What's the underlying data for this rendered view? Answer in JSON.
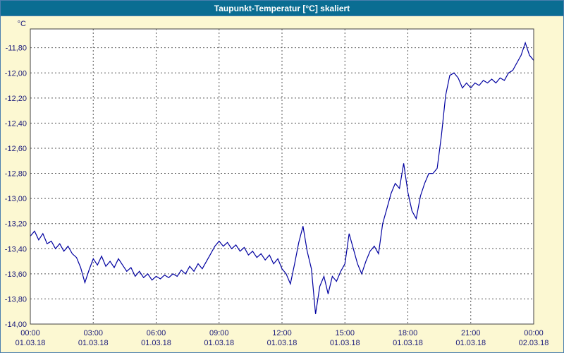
{
  "window": {
    "title": "Taupunkt-Temperatur [°C] skaliert"
  },
  "colors": {
    "titlebar_bg": "#0a6d92",
    "titlebar_text": "#ffffff",
    "chart_bg": "#fcf8d2",
    "plot_bg": "#ffffff",
    "grid": "#555555",
    "line": "#0000a0",
    "axis_text": "#1a1a7a",
    "frame": "#404040",
    "outer_border": "#4a7fae"
  },
  "chart_data": {
    "type": "line",
    "title": "Taupunkt-Temperatur [°C] skaliert",
    "ylabel": "°C",
    "xlabel": "",
    "grid": true,
    "legend": false,
    "ylim": [
      -14.0,
      -11.65
    ],
    "xlim_hours": [
      0,
      24
    ],
    "y_ticks": [
      {
        "value": -11.8,
        "label": "-11,80"
      },
      {
        "value": -12.0,
        "label": "-12,00"
      },
      {
        "value": -12.2,
        "label": "-12,20"
      },
      {
        "value": -12.4,
        "label": "-12,40"
      },
      {
        "value": -12.6,
        "label": "-12,60"
      },
      {
        "value": -12.8,
        "label": "-12,80"
      },
      {
        "value": -13.0,
        "label": "-13,00"
      },
      {
        "value": -13.2,
        "label": "-13,20"
      },
      {
        "value": -13.4,
        "label": "-13,40"
      },
      {
        "value": -13.6,
        "label": "-13,60"
      },
      {
        "value": -13.8,
        "label": "-13,80"
      },
      {
        "value": -14.0,
        "label": "-14,00"
      }
    ],
    "x_ticks": [
      {
        "hour": 0,
        "time": "00:00",
        "date": "01.03.18"
      },
      {
        "hour": 3,
        "time": "03:00",
        "date": "01.03.18"
      },
      {
        "hour": 6,
        "time": "06:00",
        "date": "01.03.18"
      },
      {
        "hour": 9,
        "time": "09:00",
        "date": "01.03.18"
      },
      {
        "hour": 12,
        "time": "12:00",
        "date": "01.03.18"
      },
      {
        "hour": 15,
        "time": "15:00",
        "date": "01.03.18"
      },
      {
        "hour": 18,
        "time": "18:00",
        "date": "01.03.18"
      },
      {
        "hour": 21,
        "time": "21:00",
        "date": "01.03.18"
      },
      {
        "hour": 24,
        "time": "00:00",
        "date": "02.03.18"
      }
    ],
    "series": [
      {
        "name": "Taupunkt-Temperatur",
        "x": [
          0,
          0.2,
          0.4,
          0.6,
          0.8,
          1.0,
          1.2,
          1.4,
          1.6,
          1.8,
          2.0,
          2.2,
          2.4,
          2.6,
          2.8,
          3.0,
          3.2,
          3.4,
          3.6,
          3.8,
          4.0,
          4.2,
          4.4,
          4.6,
          4.8,
          5.0,
          5.2,
          5.4,
          5.6,
          5.8,
          6.0,
          6.2,
          6.4,
          6.6,
          6.8,
          7.0,
          7.2,
          7.4,
          7.6,
          7.8,
          8.0,
          8.2,
          8.4,
          8.6,
          8.8,
          9.0,
          9.2,
          9.4,
          9.6,
          9.8,
          10.0,
          10.2,
          10.4,
          10.6,
          10.8,
          11.0,
          11.2,
          11.4,
          11.6,
          11.8,
          12.0,
          12.2,
          12.4,
          12.6,
          12.8,
          13.0,
          13.2,
          13.4,
          13.6,
          13.8,
          14.0,
          14.2,
          14.4,
          14.6,
          14.8,
          15.0,
          15.2,
          15.4,
          15.6,
          15.8,
          16.0,
          16.2,
          16.4,
          16.6,
          16.8,
          17.0,
          17.2,
          17.4,
          17.6,
          17.8,
          18.0,
          18.2,
          18.4,
          18.6,
          18.8,
          19.0,
          19.2,
          19.4,
          19.6,
          19.8,
          20.0,
          20.2,
          20.4,
          20.6,
          20.8,
          21.0,
          21.2,
          21.4,
          21.6,
          21.8,
          22.0,
          22.2,
          22.4,
          22.6,
          22.8,
          23.0,
          23.2,
          23.4,
          23.6,
          23.8,
          24.0
        ],
        "y": [
          -13.3,
          -13.26,
          -13.33,
          -13.28,
          -13.36,
          -13.34,
          -13.4,
          -13.36,
          -13.42,
          -13.38,
          -13.44,
          -13.47,
          -13.55,
          -13.67,
          -13.57,
          -13.48,
          -13.53,
          -13.46,
          -13.54,
          -13.5,
          -13.55,
          -13.48,
          -13.53,
          -13.58,
          -13.55,
          -13.62,
          -13.58,
          -13.63,
          -13.6,
          -13.65,
          -13.62,
          -13.64,
          -13.61,
          -13.63,
          -13.6,
          -13.62,
          -13.57,
          -13.6,
          -13.54,
          -13.58,
          -13.52,
          -13.56,
          -13.5,
          -13.44,
          -13.38,
          -13.34,
          -13.38,
          -13.35,
          -13.4,
          -13.37,
          -13.42,
          -13.39,
          -13.45,
          -13.42,
          -13.47,
          -13.44,
          -13.49,
          -13.45,
          -13.52,
          -13.48,
          -13.56,
          -13.6,
          -13.68,
          -13.52,
          -13.35,
          -13.22,
          -13.42,
          -13.56,
          -13.92,
          -13.7,
          -13.62,
          -13.76,
          -13.62,
          -13.66,
          -13.58,
          -13.52,
          -13.28,
          -13.4,
          -13.52,
          -13.6,
          -13.5,
          -13.42,
          -13.38,
          -13.44,
          -13.2,
          -13.08,
          -12.96,
          -12.88,
          -12.92,
          -12.72,
          -12.95,
          -13.1,
          -13.16,
          -12.98,
          -12.88,
          -12.8,
          -12.8,
          -12.76,
          -12.5,
          -12.18,
          -12.02,
          -12.0,
          -12.04,
          -12.12,
          -12.08,
          -12.12,
          -12.08,
          -12.1,
          -12.06,
          -12.08,
          -12.05,
          -12.08,
          -12.04,
          -12.06,
          -12.0,
          -11.98,
          -11.92,
          -11.86,
          -11.76,
          -11.86,
          -11.9
        ]
      }
    ]
  }
}
